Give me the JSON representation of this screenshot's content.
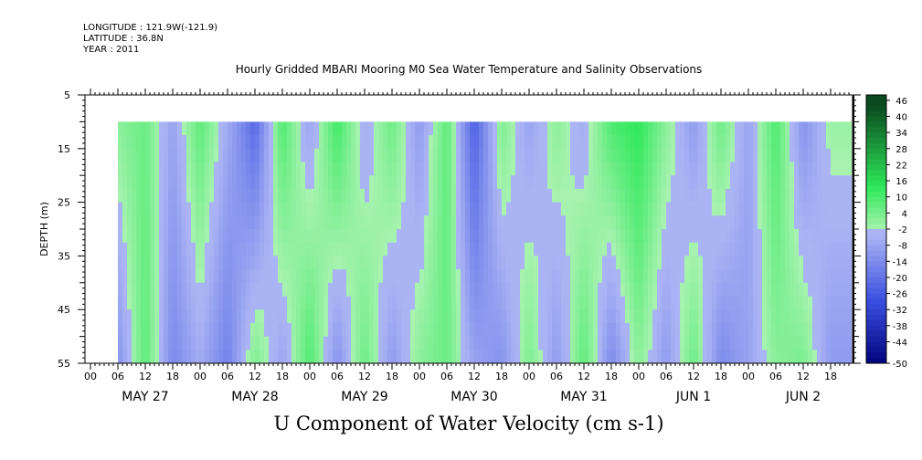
{
  "header": {
    "longitude": "LONGITUDE : 121.9W(-121.9)",
    "latitude": "LATITUDE : 36.8N",
    "year": "YEAR : 2011"
  },
  "chart_data": {
    "type": "heatmap",
    "title": "Hourly Gridded MBARI Mooring M0 Sea Water Temperature and Salinity Observations",
    "caption": "U Component of Water Velocity (cm s-1)",
    "ylabel": "DEPTH (m)",
    "ylim": [
      5,
      55
    ],
    "y_inverted": true,
    "y_ticks": [
      5,
      15,
      25,
      35,
      45,
      55
    ],
    "data_depth_range": [
      10,
      55
    ],
    "x_hour_labels": [
      "00",
      "06",
      "12",
      "18",
      "00",
      "06",
      "12",
      "18",
      "00",
      "06",
      "12",
      "18",
      "00",
      "06",
      "12",
      "18",
      "00",
      "06",
      "12",
      "18",
      "00",
      "06",
      "12",
      "18",
      "00",
      "06",
      "12",
      "18"
    ],
    "x_day_labels": [
      "MAY 27",
      "MAY 28",
      "MAY 29",
      "MAY 30",
      "MAY 31",
      "JUN  1",
      "JUN  2"
    ],
    "data_start_hour": 6,
    "colorbar_levels": [
      "46",
      "40",
      "34",
      "28",
      "22",
      "16",
      "10",
      "4",
      "-2",
      "-8",
      "-14",
      "-20",
      "-26",
      "-32",
      "-38",
      "-44",
      "-50"
    ],
    "colorbar_colors": {
      "negative_strong": "#00007a",
      "negative_mid": "#3a4fe0",
      "negative_weak": "#aab4f4",
      "positive_weak": "#a8f2b0",
      "positive_mid": "#2ee85a",
      "positive_strong": "#0a4a1e"
    },
    "band_pattern_note_for_colors": "",
    "day_columns_values": [
      {
        "hour": 6,
        "surface": 4,
        "deep": -10
      },
      {
        "hour": 12,
        "surface": 8,
        "deep": 10
      },
      {
        "hour": 18,
        "surface": -6,
        "deep": -12
      },
      {
        "hour": 24,
        "surface": 10,
        "deep": -4
      },
      {
        "hour": 30,
        "surface": -4,
        "deep": -14
      },
      {
        "hour": 36,
        "surface": -20,
        "deep": 6
      },
      {
        "hour": 42,
        "surface": 12,
        "deep": -6
      },
      {
        "hour": 48,
        "surface": -6,
        "deep": 12
      },
      {
        "hour": 54,
        "surface": 14,
        "deep": -10
      },
      {
        "hour": 60,
        "surface": -4,
        "deep": 8
      },
      {
        "hour": 66,
        "surface": 8,
        "deep": -8
      },
      {
        "hour": 72,
        "surface": -8,
        "deep": 4
      },
      {
        "hour": 78,
        "surface": 10,
        "deep": 8
      },
      {
        "hour": 84,
        "surface": -22,
        "deep": -6
      },
      {
        "hour": 90,
        "surface": 6,
        "deep": -10
      },
      {
        "hour": 96,
        "surface": -6,
        "deep": 6
      },
      {
        "hour": 102,
        "surface": 4,
        "deep": -8
      },
      {
        "hour": 108,
        "surface": -4,
        "deep": 10
      },
      {
        "hour": 114,
        "surface": 12,
        "deep": -12
      },
      {
        "hour": 120,
        "surface": 16,
        "deep": 4
      },
      {
        "hour": 126,
        "surface": 4,
        "deep": -8
      },
      {
        "hour": 132,
        "surface": -8,
        "deep": 8
      },
      {
        "hour": 138,
        "surface": 8,
        "deep": -12
      },
      {
        "hour": 144,
        "surface": -6,
        "deep": -6
      },
      {
        "hour": 150,
        "surface": 12,
        "deep": 4
      },
      {
        "hour": 156,
        "surface": -10,
        "deep": 6
      },
      {
        "hour": 162,
        "surface": 2,
        "deep": -8
      }
    ]
  }
}
